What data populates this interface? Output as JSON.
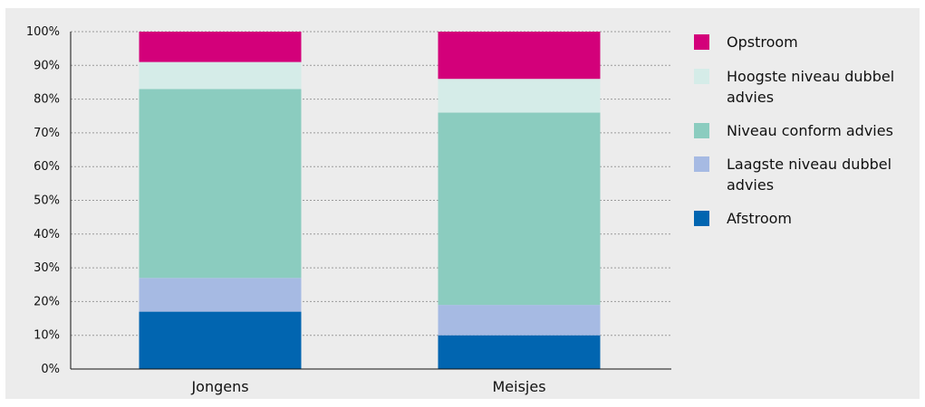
{
  "chart_data": {
    "type": "bar",
    "stacked": true,
    "categories": [
      "Jongens",
      "Meisjes"
    ],
    "series": [
      {
        "name": "Afstroom",
        "color": "#0165b0",
        "values": [
          17,
          10
        ]
      },
      {
        "name": "Laagste niveau dubbel advies",
        "color": "#a6bae3",
        "values": [
          10,
          9
        ]
      },
      {
        "name": "Niveau conform advies",
        "color": "#8bccbf",
        "values": [
          56,
          57
        ]
      },
      {
        "name": "Hoogste niveau dubbel advies",
        "color": "#d5ece8",
        "values": [
          8,
          10
        ]
      },
      {
        "name": "Opstroom",
        "color": "#d3007a",
        "values": [
          9,
          14
        ]
      }
    ],
    "legend_order": [
      "Opstroom",
      "Hoogste niveau dubbel advies",
      "Niveau conform advies",
      "Laagste niveau dubbel advies",
      "Afstroom"
    ],
    "y_ticks": [
      "0%",
      "10%",
      "20%",
      "30%",
      "40%",
      "50%",
      "60%",
      "70%",
      "80%",
      "90%",
      "100%"
    ],
    "ylim": [
      0,
      100
    ],
    "grid": true,
    "legend_position": "right",
    "title": "",
    "xlabel": "",
    "ylabel": ""
  }
}
